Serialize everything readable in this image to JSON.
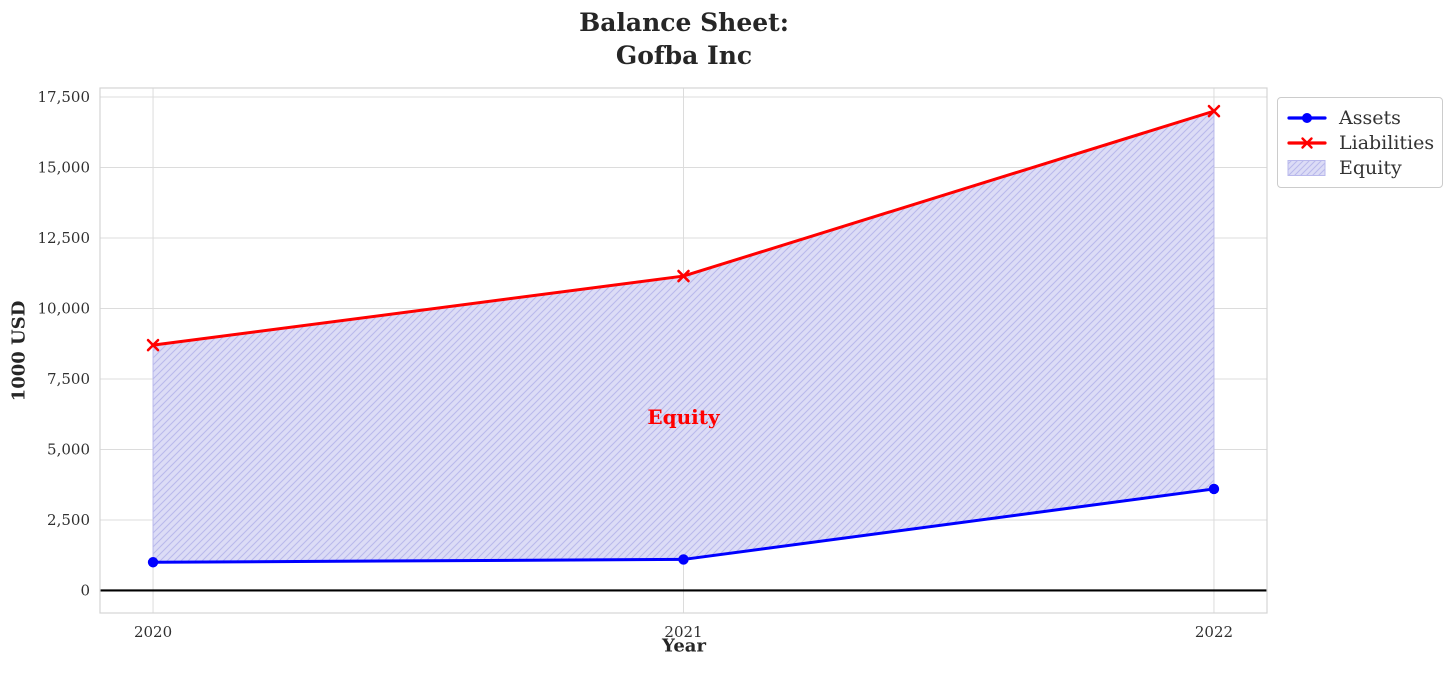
{
  "chart_data": {
    "type": "area",
    "title": "Balance Sheet:\nGofba Inc",
    "xlabel": "Year",
    "ylabel": "1000 USD",
    "x": [
      2020,
      2021,
      2022
    ],
    "xtick_labels": [
      "2020",
      "2021",
      "2022"
    ],
    "ytick_values": [
      0,
      2500,
      5000,
      7500,
      10000,
      12500,
      15000,
      17500
    ],
    "ytick_labels": [
      "0",
      "2,500",
      "5,000",
      "7,500",
      "10,000",
      "12,500",
      "15,000",
      "17,500"
    ],
    "xlim": [
      2019.9,
      2022.1
    ],
    "ylim": [
      -800,
      17820
    ],
    "grid": true,
    "series": [
      {
        "name": "Assets",
        "color": "#0000ff",
        "marker": "circle",
        "line_width": 3,
        "values": [
          1000,
          1100,
          3600
        ]
      },
      {
        "name": "Liabilities",
        "color": "#ff0000",
        "marker": "x",
        "line_width": 3,
        "values": [
          8700,
          11150,
          17000
        ]
      }
    ],
    "equity_fill": {
      "name": "Equity",
      "between": [
        "Assets",
        "Liabilities"
      ],
      "fill_color": "#dcdcf6",
      "hatch_color": "#b9b9ec",
      "hatch": "//"
    },
    "annotation": {
      "text": "Equity",
      "x": 2021,
      "y": 6150,
      "color": "#ff0000"
    },
    "zero_line_color": "#000000",
    "legend_position": "upper right outside axes",
    "legend_items": [
      "Assets",
      "Liabilities",
      "Equity"
    ]
  },
  "styles": {
    "background": "#ffffff",
    "grid_color": "#dcdcdc",
    "spine_color": "#d4d4d4",
    "tick_label_color": "#303030",
    "text_color": "#262626"
  }
}
